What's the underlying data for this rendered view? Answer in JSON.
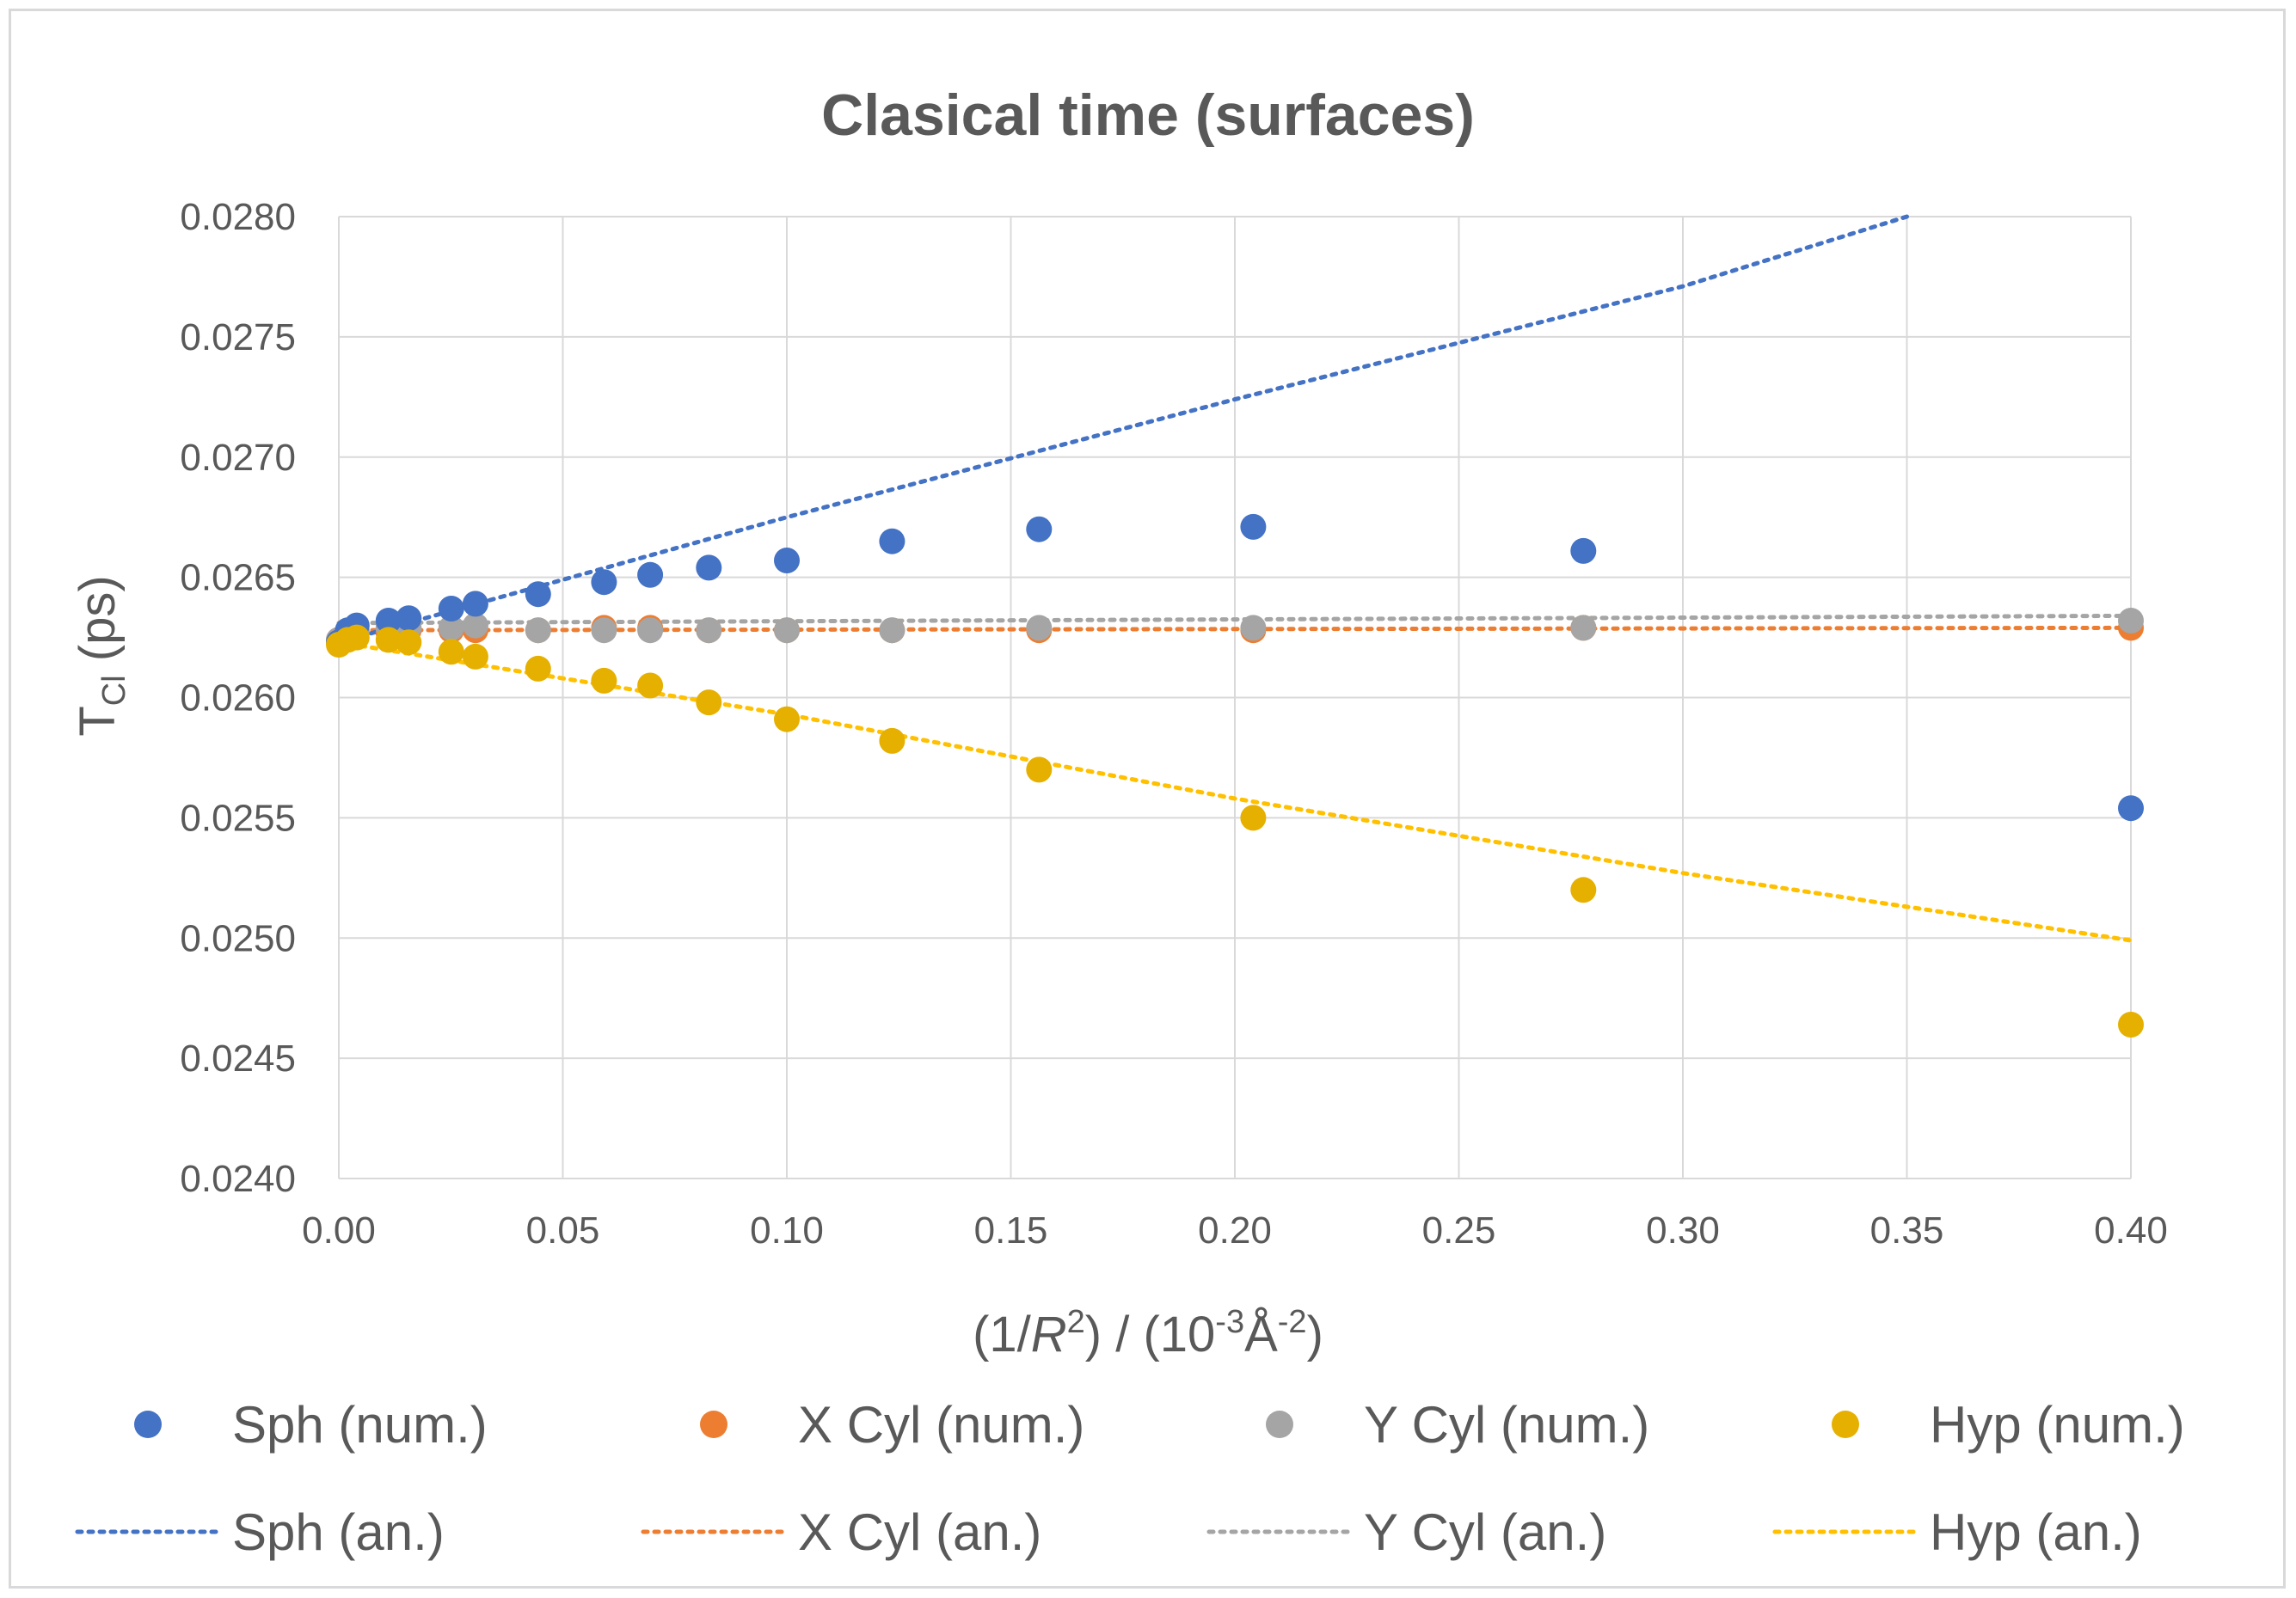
{
  "chart_data": {
    "type": "scatter",
    "title": "Clasical time (surfaces)",
    "xlabel": {
      "open": "(1/",
      "var": "R",
      "sq": "2",
      "mid": ") / (10",
      "exp": "-3",
      "unit": "Å",
      "exp2": "-2",
      "close": ")"
    },
    "ylabel": {
      "base": "T",
      "sub": "Cl",
      "rest": " (ps)"
    },
    "xlim": [
      0,
      0.4
    ],
    "ylim": [
      0.024,
      0.028
    ],
    "xticks": [
      "0.00",
      "0.05",
      "0.10",
      "0.15",
      "0.20",
      "0.25",
      "0.30",
      "0.35",
      "0.40"
    ],
    "xtick_values": [
      0,
      0.05,
      0.1,
      0.15,
      0.2,
      0.25,
      0.3,
      0.35,
      0.4
    ],
    "yticks": [
      "0.0240",
      "0.0245",
      "0.0250",
      "0.0255",
      "0.0260",
      "0.0265",
      "0.0270",
      "0.0275",
      "0.0280"
    ],
    "ytick_values": [
      0.024,
      0.0245,
      0.025,
      0.0255,
      0.026,
      0.0265,
      0.027,
      0.0275,
      0.028
    ],
    "grid": true,
    "legend_position": "bottom",
    "series": [
      {
        "name": "Sph (num.)",
        "kind": "scatter",
        "color": "#4472c4",
        "x": [
          0.0,
          0.002,
          0.004,
          0.0111,
          0.0156,
          0.0251,
          0.0305,
          0.0445,
          0.0592,
          0.0695,
          0.0826,
          0.1,
          0.1235,
          0.1563,
          0.2041,
          0.2778,
          0.4
        ],
        "y": [
          0.02623,
          0.02628,
          0.0263,
          0.02632,
          0.02633,
          0.02637,
          0.02639,
          0.02643,
          0.02648,
          0.02651,
          0.02654,
          0.02657,
          0.02665,
          0.0267,
          0.02671,
          0.02661,
          0.02554
        ]
      },
      {
        "name": "X Cyl (num.)",
        "kind": "scatter",
        "color": "#ed7d31",
        "x": [
          0.0,
          0.002,
          0.004,
          0.0111,
          0.0156,
          0.0251,
          0.0305,
          0.0445,
          0.0592,
          0.0695,
          0.0826,
          0.1,
          0.1235,
          0.1563,
          0.2041,
          0.2778,
          0.4
        ],
        "y": [
          0.02624,
          0.02626,
          0.02627,
          0.02627,
          0.02628,
          0.02628,
          0.02628,
          0.02628,
          0.02629,
          0.02629,
          0.02628,
          0.02628,
          0.02628,
          0.02628,
          0.02628,
          0.02629,
          0.02629
        ]
      },
      {
        "name": "Y Cyl (num.)",
        "kind": "scatter",
        "color": "#a5a5a5",
        "x": [
          0.0,
          0.002,
          0.004,
          0.0111,
          0.0156,
          0.0251,
          0.0305,
          0.0445,
          0.0592,
          0.0695,
          0.0826,
          0.1,
          0.1235,
          0.1563,
          0.2041,
          0.2778,
          0.4
        ],
        "y": [
          0.02624,
          0.02627,
          0.02628,
          0.02629,
          0.02629,
          0.02629,
          0.0263,
          0.02628,
          0.02628,
          0.02628,
          0.02628,
          0.02628,
          0.02628,
          0.02629,
          0.02629,
          0.02629,
          0.02632
        ]
      },
      {
        "name": "Hyp (num.)",
        "kind": "scatter",
        "color": "#e6b000",
        "x": [
          0.0,
          0.002,
          0.004,
          0.0111,
          0.0156,
          0.0251,
          0.0305,
          0.0445,
          0.0592,
          0.0695,
          0.0826,
          0.1,
          0.1235,
          0.1563,
          0.2041,
          0.2778,
          0.4
        ],
        "y": [
          0.02622,
          0.02624,
          0.02625,
          0.02624,
          0.02623,
          0.02619,
          0.02617,
          0.02612,
          0.02607,
          0.02605,
          0.02598,
          0.02591,
          0.02582,
          0.0257,
          0.0255,
          0.0252,
          0.02464
        ]
      },
      {
        "name": "Sph (an.)",
        "kind": "line",
        "color": "#4472c4",
        "x": [
          0.0,
          0.1,
          0.2,
          0.3,
          0.35
        ],
        "y": [
          0.02623,
          0.02675,
          0.02724,
          0.02771,
          0.028
        ]
      },
      {
        "name": "X Cyl (an.)",
        "kind": "line",
        "color": "#ed7d31",
        "x": [
          0.0,
          0.4
        ],
        "y": [
          0.02628,
          0.02629
        ]
      },
      {
        "name": "Y Cyl (an.)",
        "kind": "line",
        "color": "#a5a5a5",
        "x": [
          0.0,
          0.4
        ],
        "y": [
          0.02631,
          0.02634
        ]
      },
      {
        "name": "Hyp (an.)",
        "kind": "line",
        "color": "#ffc000",
        "x": [
          0.0,
          0.1,
          0.2,
          0.3,
          0.4
        ],
        "y": [
          0.02623,
          0.02593,
          0.02558,
          0.02527,
          0.02499
        ]
      }
    ]
  }
}
